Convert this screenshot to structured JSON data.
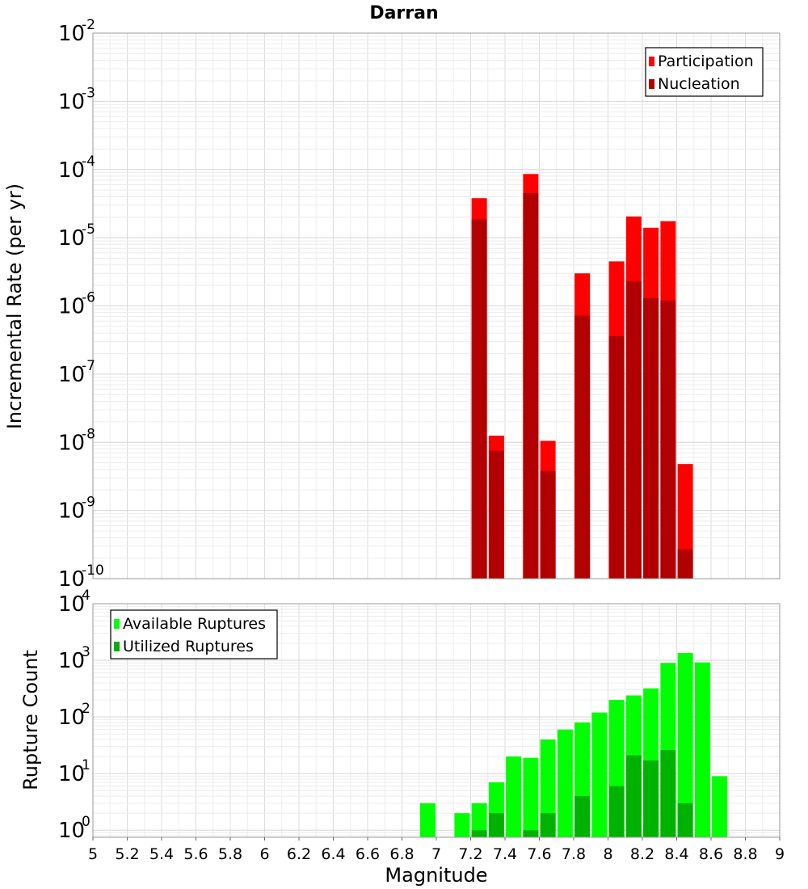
{
  "chart_data": [
    {
      "type": "bar",
      "title": "Darran",
      "ylabel": "Incremental Rate (per yr)",
      "yscale": "log",
      "ylim": [
        1e-10,
        0.01
      ],
      "xlim": [
        5,
        9
      ],
      "grid": true,
      "legend_position": "top-right",
      "y_ticks": [
        {
          "base": "10",
          "exp": "-10"
        },
        {
          "base": "10",
          "exp": "-9"
        },
        {
          "base": "10",
          "exp": "-8"
        },
        {
          "base": "10",
          "exp": "-7"
        },
        {
          "base": "10",
          "exp": "-6"
        },
        {
          "base": "10",
          "exp": "-5"
        },
        {
          "base": "10",
          "exp": "-4"
        },
        {
          "base": "10",
          "exp": "-3"
        },
        {
          "base": "10",
          "exp": "-2"
        }
      ],
      "series": [
        {
          "name": "Participation",
          "color": "#ff0000",
          "x": [
            7.25,
            7.35,
            7.55,
            7.65,
            7.85,
            8.05,
            8.15,
            8.25,
            8.35,
            8.45
          ],
          "values": [
            3.8e-05,
            1.25e-08,
            8.6e-05,
            1.05e-08,
            3e-06,
            4.5e-06,
            2.05e-05,
            1.4e-05,
            1.75e-05,
            4.8e-09
          ]
        },
        {
          "name": "Nucleation",
          "color": "#b20000",
          "x": [
            7.25,
            7.35,
            7.55,
            7.65,
            7.85,
            8.05,
            8.15,
            8.25,
            8.35,
            8.45
          ],
          "values": [
            1.85e-05,
            7.5e-09,
            4.5e-05,
            3.8e-09,
            7.2e-07,
            3.6e-07,
            2.3e-06,
            1.3e-06,
            1.2e-06,
            2.7e-10
          ]
        }
      ]
    },
    {
      "type": "bar",
      "xlabel": "Magnitude",
      "ylabel": "Rupture Count",
      "yscale": "log",
      "ylim": [
        0.75,
        10000
      ],
      "xlim": [
        5,
        9
      ],
      "grid": true,
      "legend_position": "top-left",
      "x_ticks": [
        "5",
        "5.2",
        "5.4",
        "5.6",
        "5.8",
        "6",
        "6.2",
        "6.4",
        "6.6",
        "6.8",
        "7",
        "7.2",
        "7.4",
        "7.6",
        "7.8",
        "8",
        "8.2",
        "8.4",
        "8.6",
        "8.8",
        "9"
      ],
      "y_ticks": [
        {
          "base": "10",
          "exp": "0"
        },
        {
          "base": "10",
          "exp": "1"
        },
        {
          "base": "10",
          "exp": "2"
        },
        {
          "base": "10",
          "exp": "3"
        },
        {
          "base": "10",
          "exp": "4"
        }
      ],
      "series": [
        {
          "name": "Available Ruptures",
          "color": "#00ff00",
          "x": [
            6.95,
            7.15,
            7.25,
            7.35,
            7.45,
            7.55,
            7.65,
            7.75,
            7.85,
            7.95,
            8.05,
            8.15,
            8.25,
            8.35,
            8.45,
            8.55,
            8.65
          ],
          "values": [
            3,
            2,
            3,
            7,
            20,
            19,
            40,
            60,
            80,
            120,
            200,
            240,
            320,
            900,
            1350,
            920,
            9
          ]
        },
        {
          "name": "Utilized Ruptures",
          "color": "#00b200",
          "x": [
            7.25,
            7.35,
            7.55,
            7.65,
            7.85,
            8.05,
            8.15,
            8.25,
            8.35,
            8.45
          ],
          "values": [
            1,
            2,
            1,
            2,
            4,
            6,
            21,
            17,
            26,
            3
          ]
        }
      ]
    }
  ]
}
